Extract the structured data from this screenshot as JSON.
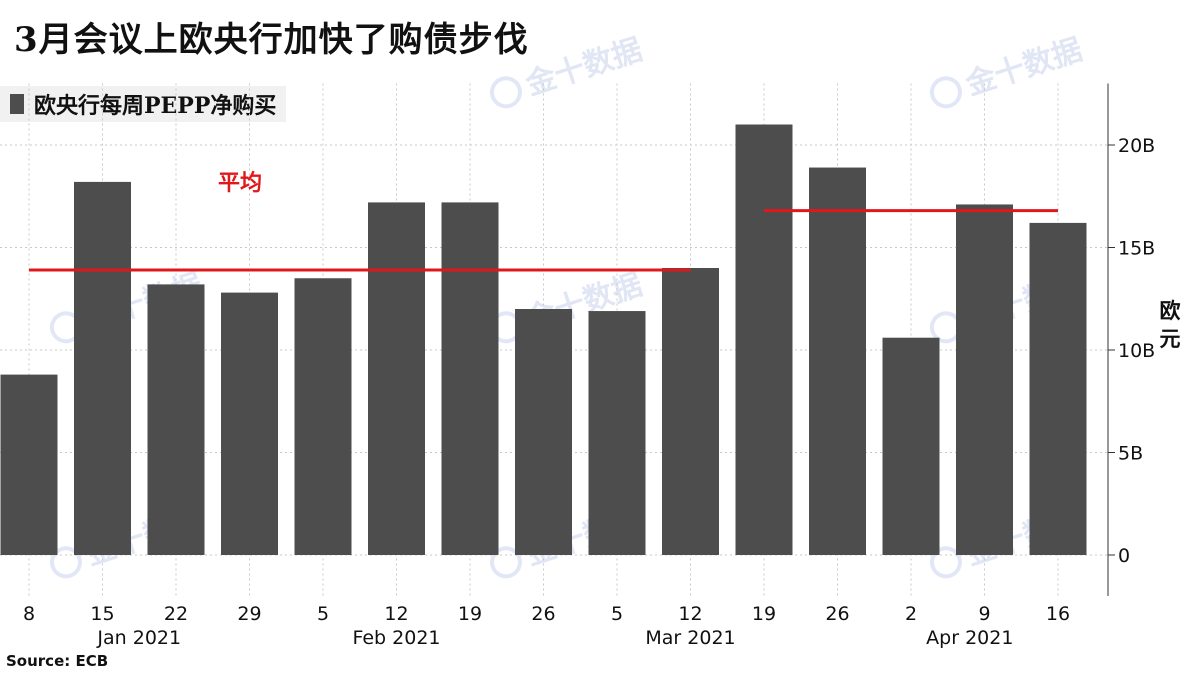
{
  "title": "3月会议上欧央行加快了购债步伐",
  "legend": {
    "label": "欧央行每周PEPP净购买"
  },
  "source": "Source:  ECB",
  "watermark": "金十数据",
  "colors": {
    "bar": "#4d4d4d",
    "avg_line": "#e0181b",
    "grid": "#c8c8c8"
  },
  "chart_data": {
    "type": "bar",
    "categories": [
      "8",
      "15",
      "22",
      "29",
      "5",
      "12",
      "19",
      "26",
      "5",
      "12",
      "19",
      "26",
      "2",
      "9",
      "16"
    ],
    "month_labels": [
      {
        "label": "Jan 2021",
        "center_index": 1.5
      },
      {
        "label": "Feb 2021",
        "center_index": 5
      },
      {
        "label": "Mar 2021",
        "center_index": 9
      },
      {
        "label": "Apr 2021",
        "center_index": 12.8
      }
    ],
    "series": [
      {
        "name": "欧央行每周PEPP净购买",
        "values": [
          8.8,
          18.2,
          13.2,
          12.8,
          13.5,
          17.2,
          17.2,
          12.0,
          11.9,
          14.0,
          21.0,
          18.9,
          10.6,
          17.1,
          16.2
        ]
      }
    ],
    "y_ticks": [
      0,
      5,
      10,
      15,
      20
    ],
    "y_tick_labels": [
      "0",
      "5B",
      "10B",
      "15B",
      "20B"
    ],
    "ylim": [
      -2,
      23
    ],
    "ylabel": "欧元",
    "averages": [
      {
        "label": "平均",
        "value": 13.9,
        "start_index": 0,
        "end_index": 9
      },
      {
        "value": 16.8,
        "start_index": 10,
        "end_index": 14
      }
    ],
    "grid": true
  }
}
